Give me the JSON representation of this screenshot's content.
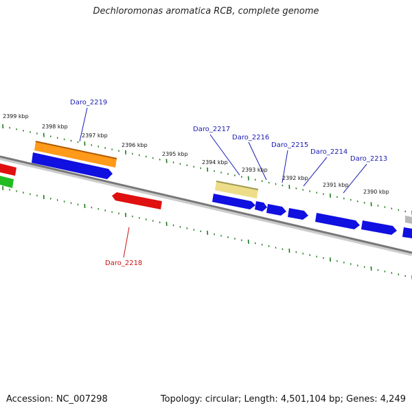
{
  "title": "Dechloromonas aromatica RCB, complete genome",
  "footer": {
    "accession": "Accession: NC_007298",
    "summary": "Topology: circular; Length: 4,501,104 bp; Genes: 4,249"
  },
  "colors": {
    "background": "#ffffff",
    "backbone": "#777777",
    "tick": "#1a7a1a",
    "forward_gene": "#1010e0",
    "reverse_gene": "#e01010",
    "forward_label": "#1a1ab0",
    "reverse_label": "#cc1010",
    "orange_feature": "#ff9a1a",
    "khaki_feature": "#eedd88",
    "green_feature": "#22bb22",
    "grey_feature": "#b8b8b8"
  },
  "kbp_labels": [
    "2399 kbp",
    "2398 kbp",
    "2397 kbp",
    "2396 kbp",
    "2395 kbp",
    "2394 kbp",
    "2393 kbp",
    "2392 kbp",
    "2391 kbp",
    "2390 kbp"
  ],
  "gene_labels": [
    {
      "id": "daro-2219",
      "text": "Daro_2219",
      "strand": "forward"
    },
    {
      "id": "daro-2217",
      "text": "Daro_2217",
      "strand": "forward"
    },
    {
      "id": "daro-2216",
      "text": "Daro_2216",
      "strand": "forward"
    },
    {
      "id": "daro-2215",
      "text": "Daro_2215",
      "strand": "forward"
    },
    {
      "id": "daro-2214",
      "text": "Daro_2214",
      "strand": "forward"
    },
    {
      "id": "daro-2213",
      "text": "Daro_2213",
      "strand": "forward"
    },
    {
      "id": "daro-2218",
      "text": "Daro_2218",
      "strand": "reverse"
    }
  ]
}
